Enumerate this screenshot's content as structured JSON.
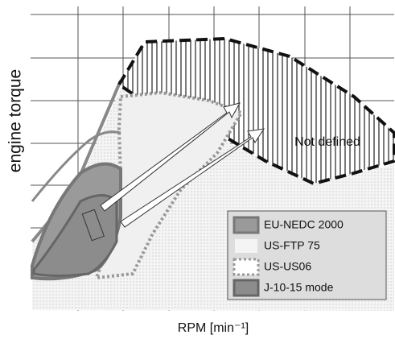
{
  "axes": {
    "y_label": "engine torque",
    "x_label": "RPM [min⁻¹]"
  },
  "annotation": "Not defined",
  "legend": [
    "EU-NEDC 2000",
    "US-FTP 75",
    "US-US06",
    "J-10-15 mode"
  ]
}
